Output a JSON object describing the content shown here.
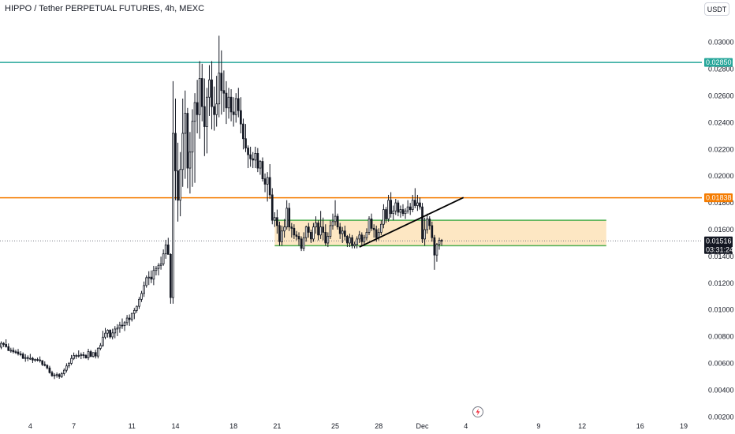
{
  "header": {
    "title": "HIPPO / Tether PERPETUAL FUTURES, 4h, MEXC",
    "currency_label": "USDT"
  },
  "colors": {
    "up": "#131722",
    "down": "#131722",
    "resistance_line": "#26a69a",
    "breakout_line": "#f57c00",
    "range_box_fill": "#fde7c3",
    "range_box_border": "#4caf50",
    "current_price_line": "#787b86",
    "trendline": "#000000"
  },
  "icons": {
    "time_axis_icon": "lightning-icon"
  },
  "chart_data": {
    "type": "candlestick",
    "title": "HIPPO / Tether PERPETUAL FUTURES, 4h, MEXC",
    "y_axis": {
      "ticks": [
        "0.00200",
        "0.00400",
        "0.00600",
        "0.00800",
        "0.01000",
        "0.01200",
        "0.01400",
        "0.01600",
        "0.01800",
        "0.02000",
        "0.02200",
        "0.02400",
        "0.02600",
        "0.02800",
        "0.03000"
      ],
      "range": [
        0.0019,
        0.0314
      ]
    },
    "x_axis": {
      "ticks": [
        {
          "label": "4",
          "index": 12
        },
        {
          "label": "7",
          "index": 30
        },
        {
          "label": "11",
          "index": 54
        },
        {
          "label": "14",
          "index": 72
        },
        {
          "label": "18",
          "index": 96
        },
        {
          "label": "21",
          "index": 114
        },
        {
          "label": "25",
          "index": 138
        },
        {
          "label": "28",
          "index": 156
        },
        {
          "label": "Dec",
          "index": 174
        },
        {
          "label": "4",
          "index": 192
        },
        {
          "label": "9",
          "index": 222
        },
        {
          "label": "12",
          "index": 240
        },
        {
          "label": "16",
          "index": 264
        },
        {
          "label": "19",
          "index": 282
        }
      ],
      "total_slots": 290
    },
    "horizontal_lines": [
      {
        "name": "resistance",
        "price": 0.0285,
        "label": "0.02850"
      },
      {
        "name": "breakout",
        "price": 0.01838,
        "label": "0.01838"
      }
    ],
    "current_price": {
      "price": 0.01516,
      "label": "0.01516",
      "countdown": "03:31:24"
    },
    "range_box": {
      "top": 0.0167,
      "bottom": 0.0148,
      "start_index": 113,
      "end_index": 250
    },
    "trendline": {
      "start": {
        "index": 148,
        "price": 0.0147
      },
      "end": {
        "index": 191,
        "price": 0.0184
      }
    },
    "candles": [
      [
        0.00721,
        0.00765,
        0.00706,
        0.0075
      ],
      [
        0.0075,
        0.00759,
        0.00723,
        0.00742
      ],
      [
        0.00742,
        0.0078,
        0.00718,
        0.00725
      ],
      [
        0.00725,
        0.00749,
        0.00693,
        0.00696
      ],
      [
        0.00696,
        0.00717,
        0.0068,
        0.00698
      ],
      [
        0.00698,
        0.00718,
        0.00674,
        0.00687
      ],
      [
        0.00687,
        0.00702,
        0.00671,
        0.00685
      ],
      [
        0.00685,
        0.00708,
        0.00659,
        0.00671
      ],
      [
        0.00671,
        0.00691,
        0.00654,
        0.00669
      ],
      [
        0.00669,
        0.00682,
        0.00633,
        0.00638
      ],
      [
        0.00638,
        0.00669,
        0.00612,
        0.00643
      ],
      [
        0.00643,
        0.0066,
        0.00617,
        0.00637
      ],
      [
        0.00637,
        0.00671,
        0.00626,
        0.00638
      ],
      [
        0.00638,
        0.00649,
        0.00603,
        0.00625
      ],
      [
        0.00625,
        0.00636,
        0.00611,
        0.00629
      ],
      [
        0.00629,
        0.00643,
        0.00614,
        0.00626
      ],
      [
        0.00626,
        0.00652,
        0.00606,
        0.00621
      ],
      [
        0.00621,
        0.00623,
        0.0058,
        0.00592
      ],
      [
        0.00592,
        0.00615,
        0.00578,
        0.00585
      ],
      [
        0.00585,
        0.00593,
        0.00555,
        0.00566
      ],
      [
        0.00566,
        0.00582,
        0.00524,
        0.00531
      ],
      [
        0.00531,
        0.00545,
        0.005,
        0.00508
      ],
      [
        0.00508,
        0.00527,
        0.00483,
        0.00513
      ],
      [
        0.00513,
        0.00532,
        0.00493,
        0.00516
      ],
      [
        0.00516,
        0.00526,
        0.00485,
        0.00501
      ],
      [
        0.00501,
        0.00535,
        0.00491,
        0.00524
      ],
      [
        0.00524,
        0.00563,
        0.00508,
        0.00549
      ],
      [
        0.00549,
        0.00601,
        0.00532,
        0.00581
      ],
      [
        0.00581,
        0.0061,
        0.00565,
        0.006
      ],
      [
        0.006,
        0.00663,
        0.00588,
        0.00637
      ],
      [
        0.00637,
        0.00681,
        0.00625,
        0.00659
      ],
      [
        0.00659,
        0.00671,
        0.00634,
        0.00659
      ],
      [
        0.00659,
        0.00697,
        0.00643,
        0.00659
      ],
      [
        0.00659,
        0.00681,
        0.00632,
        0.00665
      ],
      [
        0.00665,
        0.00686,
        0.00637,
        0.00659
      ],
      [
        0.00659,
        0.00669,
        0.00636,
        0.00641
      ],
      [
        0.00641,
        0.00709,
        0.00625,
        0.00688
      ],
      [
        0.00688,
        0.007,
        0.00647,
        0.00652
      ],
      [
        0.00652,
        0.00682,
        0.00644,
        0.00681
      ],
      [
        0.00681,
        0.00702,
        0.00637,
        0.00655
      ],
      [
        0.00655,
        0.00721,
        0.00637,
        0.00712
      ],
      [
        0.00712,
        0.00752,
        0.00698,
        0.00734
      ],
      [
        0.00734,
        0.00844,
        0.00723,
        0.00796
      ],
      [
        0.00796,
        0.00865,
        0.0078,
        0.00826
      ],
      [
        0.00826,
        0.00855,
        0.00793,
        0.00848
      ],
      [
        0.00848,
        0.00855,
        0.00785,
        0.00798
      ],
      [
        0.00798,
        0.00859,
        0.00779,
        0.00828
      ],
      [
        0.00828,
        0.00879,
        0.00788,
        0.00857
      ],
      [
        0.00857,
        0.00893,
        0.00804,
        0.00864
      ],
      [
        0.00864,
        0.00911,
        0.00829,
        0.00886
      ],
      [
        0.00886,
        0.00936,
        0.00858,
        0.00883
      ],
      [
        0.00883,
        0.00916,
        0.00842,
        0.00905
      ],
      [
        0.00905,
        0.00962,
        0.00884,
        0.00939
      ],
      [
        0.00939,
        0.00966,
        0.00881,
        0.00928
      ],
      [
        0.00928,
        0.00978,
        0.00913,
        0.00974
      ],
      [
        0.00974,
        0.01015,
        0.00931,
        0.00996
      ],
      [
        0.00996,
        0.01032,
        0.00978,
        0.01027
      ],
      [
        0.01027,
        0.01097,
        0.01007,
        0.01079
      ],
      [
        0.01079,
        0.01142,
        0.01059,
        0.01123
      ],
      [
        0.01123,
        0.01212,
        0.01097,
        0.01182
      ],
      [
        0.01182,
        0.01257,
        0.01166,
        0.01241
      ],
      [
        0.01241,
        0.01289,
        0.01186,
        0.01245
      ],
      [
        0.01245,
        0.01295,
        0.012,
        0.0123
      ],
      [
        0.0123,
        0.01329,
        0.01185,
        0.01295
      ],
      [
        0.01295,
        0.01328,
        0.01258,
        0.0131
      ],
      [
        0.0131,
        0.0135,
        0.01258,
        0.01333
      ],
      [
        0.01333,
        0.01398,
        0.01301,
        0.01344
      ],
      [
        0.01344,
        0.01452,
        0.0133,
        0.01419
      ],
      [
        0.01419,
        0.01524,
        0.01382,
        0.01486
      ],
      [
        0.01486,
        0.01539,
        0.01414,
        0.01415
      ],
      [
        0.01415,
        0.01423,
        0.01046,
        0.01092
      ],
      [
        0.01092,
        0.0271,
        0.01046,
        0.0232
      ],
      [
        0.0232,
        0.0258,
        0.0182,
        0.0204
      ],
      [
        0.0204,
        0.0225,
        0.0166,
        0.0182
      ],
      [
        0.0182,
        0.0218,
        0.017,
        0.0205
      ],
      [
        0.0205,
        0.0258,
        0.0192,
        0.0232
      ],
      [
        0.0232,
        0.0264,
        0.0198,
        0.0247
      ],
      [
        0.0247,
        0.0251,
        0.0191,
        0.0206
      ],
      [
        0.0206,
        0.0233,
        0.0187,
        0.0218
      ],
      [
        0.0218,
        0.025,
        0.0192,
        0.0241
      ],
      [
        0.0241,
        0.0262,
        0.0195,
        0.0255
      ],
      [
        0.0255,
        0.0272,
        0.0232,
        0.0246
      ],
      [
        0.0246,
        0.0286,
        0.0228,
        0.0273
      ],
      [
        0.0273,
        0.0284,
        0.0241,
        0.0252
      ],
      [
        0.0252,
        0.0273,
        0.0215,
        0.0237
      ],
      [
        0.0237,
        0.0266,
        0.0217,
        0.0259
      ],
      [
        0.0259,
        0.0283,
        0.0245,
        0.0272
      ],
      [
        0.0272,
        0.0286,
        0.0235,
        0.0252
      ],
      [
        0.0252,
        0.0267,
        0.0234,
        0.0246
      ],
      [
        0.0246,
        0.0275,
        0.0237,
        0.0254
      ],
      [
        0.0254,
        0.0305,
        0.0244,
        0.0277
      ],
      [
        0.0277,
        0.0294,
        0.0246,
        0.0264
      ],
      [
        0.0264,
        0.0279,
        0.0248,
        0.0262
      ],
      [
        0.0262,
        0.0271,
        0.0239,
        0.0251
      ],
      [
        0.0251,
        0.0266,
        0.0243,
        0.0259
      ],
      [
        0.0259,
        0.0265,
        0.0241,
        0.0248
      ],
      [
        0.0248,
        0.0259,
        0.0237,
        0.0246
      ],
      [
        0.0246,
        0.0262,
        0.024,
        0.0258
      ],
      [
        0.0258,
        0.0266,
        0.0244,
        0.0249
      ],
      [
        0.0249,
        0.0259,
        0.0232,
        0.0239
      ],
      [
        0.0239,
        0.0243,
        0.022,
        0.0228
      ],
      [
        0.0228,
        0.0239,
        0.0218,
        0.0221
      ],
      [
        0.0221,
        0.0223,
        0.0206,
        0.0216
      ],
      [
        0.0216,
        0.0222,
        0.0207,
        0.0213
      ],
      [
        0.0213,
        0.0218,
        0.0206,
        0.0212
      ],
      [
        0.0212,
        0.0222,
        0.0206,
        0.0217
      ],
      [
        0.0217,
        0.0221,
        0.0203,
        0.0206
      ],
      [
        0.0206,
        0.0212,
        0.0201,
        0.0211
      ],
      [
        0.0211,
        0.0214,
        0.0196,
        0.0198
      ],
      [
        0.0198,
        0.0202,
        0.0188,
        0.0194
      ],
      [
        0.0194,
        0.0203,
        0.0181,
        0.0199
      ],
      [
        0.0199,
        0.0209,
        0.0183,
        0.0186
      ],
      [
        0.0186,
        0.0191,
        0.0164,
        0.0167
      ],
      [
        0.0167,
        0.0173,
        0.0162,
        0.0169
      ],
      [
        0.0169,
        0.0175,
        0.0157,
        0.0163
      ],
      [
        0.0163,
        0.0166,
        0.0148,
        0.0151
      ],
      [
        0.0151,
        0.0163,
        0.0148,
        0.0159
      ],
      [
        0.0159,
        0.0168,
        0.0154,
        0.0162
      ],
      [
        0.0162,
        0.0182,
        0.016,
        0.0176
      ],
      [
        0.0176,
        0.018,
        0.0159,
        0.0162
      ],
      [
        0.0162,
        0.0165,
        0.0154,
        0.0161
      ],
      [
        0.0161,
        0.0164,
        0.0153,
        0.0156
      ],
      [
        0.0156,
        0.0159,
        0.0152,
        0.0155
      ],
      [
        0.0155,
        0.0158,
        0.0148,
        0.0153
      ],
      [
        0.0153,
        0.0155,
        0.0144,
        0.0146
      ],
      [
        0.0146,
        0.0158,
        0.0144,
        0.0154
      ],
      [
        0.0154,
        0.0163,
        0.0151,
        0.0162
      ],
      [
        0.0162,
        0.0165,
        0.0154,
        0.0158
      ],
      [
        0.0158,
        0.016,
        0.015,
        0.0153
      ],
      [
        0.0153,
        0.0165,
        0.0151,
        0.0162
      ],
      [
        0.0162,
        0.017,
        0.0157,
        0.0165
      ],
      [
        0.0165,
        0.0167,
        0.0152,
        0.0156
      ],
      [
        0.0156,
        0.0174,
        0.0153,
        0.0162
      ],
      [
        0.0162,
        0.0169,
        0.0152,
        0.0158
      ],
      [
        0.0158,
        0.0164,
        0.0148,
        0.015
      ],
      [
        0.015,
        0.0158,
        0.0147,
        0.0155
      ],
      [
        0.0155,
        0.0167,
        0.0153,
        0.0163
      ],
      [
        0.0163,
        0.0172,
        0.016,
        0.0166
      ],
      [
        0.0166,
        0.0182,
        0.0163,
        0.017
      ],
      [
        0.017,
        0.0172,
        0.016,
        0.0162
      ],
      [
        0.0162,
        0.0165,
        0.0153,
        0.0157
      ],
      [
        0.0157,
        0.0162,
        0.015,
        0.0159
      ],
      [
        0.0159,
        0.0163,
        0.0152,
        0.0155
      ],
      [
        0.0155,
        0.0156,
        0.0147,
        0.015
      ],
      [
        0.015,
        0.0157,
        0.0147,
        0.0154
      ],
      [
        0.0154,
        0.0156,
        0.0146,
        0.0148
      ],
      [
        0.0148,
        0.0151,
        0.0146,
        0.0149
      ],
      [
        0.0149,
        0.0155,
        0.0146,
        0.0153
      ],
      [
        0.0153,
        0.0159,
        0.015,
        0.0156
      ],
      [
        0.0156,
        0.0158,
        0.0148,
        0.0151
      ],
      [
        0.0151,
        0.0156,
        0.0148,
        0.0154
      ],
      [
        0.0154,
        0.0161,
        0.0152,
        0.0158
      ],
      [
        0.0158,
        0.017,
        0.0156,
        0.0168
      ],
      [
        0.0168,
        0.0172,
        0.0159,
        0.0161
      ],
      [
        0.0161,
        0.0164,
        0.0154,
        0.016
      ],
      [
        0.016,
        0.0163,
        0.0151,
        0.0154
      ],
      [
        0.0154,
        0.0161,
        0.0152,
        0.0158
      ],
      [
        0.0158,
        0.0167,
        0.0156,
        0.0164
      ],
      [
        0.0164,
        0.0179,
        0.0161,
        0.0175
      ],
      [
        0.0175,
        0.0177,
        0.0165,
        0.0168
      ],
      [
        0.0168,
        0.0186,
        0.0166,
        0.0182
      ],
      [
        0.0182,
        0.0188,
        0.0169,
        0.0172
      ],
      [
        0.0172,
        0.0178,
        0.0167,
        0.0174
      ],
      [
        0.0174,
        0.0183,
        0.0171,
        0.018
      ],
      [
        0.018,
        0.0182,
        0.017,
        0.0173
      ],
      [
        0.0173,
        0.0178,
        0.0169,
        0.0175
      ],
      [
        0.0175,
        0.0179,
        0.017,
        0.0172
      ],
      [
        0.0172,
        0.0176,
        0.0168,
        0.0174
      ],
      [
        0.0174,
        0.0182,
        0.0172,
        0.0177
      ],
      [
        0.0177,
        0.018,
        0.0171,
        0.0175
      ],
      [
        0.0175,
        0.0186,
        0.0173,
        0.0182
      ],
      [
        0.0182,
        0.0191,
        0.0176,
        0.0178
      ],
      [
        0.0178,
        0.0186,
        0.0174,
        0.018
      ],
      [
        0.018,
        0.0184,
        0.0175,
        0.0177
      ],
      [
        0.0177,
        0.018,
        0.015,
        0.0153
      ],
      [
        0.0153,
        0.0169,
        0.0148,
        0.016
      ],
      [
        0.016,
        0.0172,
        0.0157,
        0.0168
      ],
      [
        0.0168,
        0.017,
        0.016,
        0.0163
      ],
      [
        0.0163,
        0.0166,
        0.0151,
        0.0154
      ],
      [
        0.0154,
        0.0156,
        0.013,
        0.0141
      ],
      [
        0.0141,
        0.015,
        0.0136,
        0.0149
      ],
      [
        0.0149,
        0.0154,
        0.0145,
        0.0152
      ],
      [
        0.0152,
        0.0153,
        0.0148,
        0.01516
      ]
    ]
  }
}
